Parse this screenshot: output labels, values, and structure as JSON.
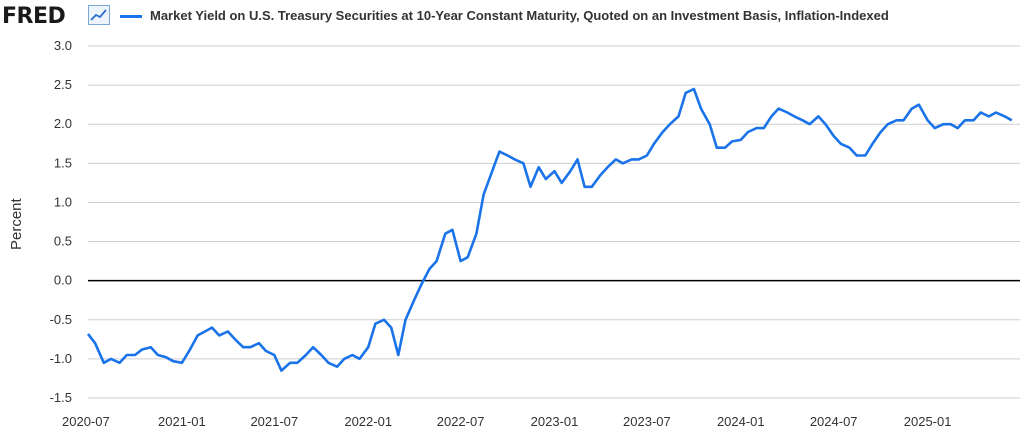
{
  "header": {
    "brand": "FRED",
    "brand_icon": "line-chart-icon",
    "series_label": "Market Yield on U.S. Treasury Securities at 10-Year Constant Maturity, Quoted on an Investment Basis, Inflation-Indexed"
  },
  "colors": {
    "series": "#1a73e8",
    "grid": "#cfcfcf",
    "zero_line": "#000000"
  },
  "chart_data": {
    "type": "line",
    "title": "",
    "xlabel": "",
    "ylabel": "Percent",
    "ylim": [
      -1.5,
      3.0
    ],
    "y_ticks": [
      "3.0",
      "2.5",
      "2.0",
      "1.5",
      "1.0",
      "0.5",
      "0.0",
      "-0.5",
      "-1.0",
      "-1.5"
    ],
    "x_ticks": [
      "2020-07",
      "2021-01",
      "2021-07",
      "2022-01",
      "2022-07",
      "2023-01",
      "2023-07",
      "2024-01",
      "2024-07",
      "2025-01"
    ],
    "grid": "horizontal",
    "series": [
      {
        "name": "Market Yield on U.S. Treasury Securities at 10-Year Constant Maturity, Quoted on an Investment Basis, Inflation-Indexed",
        "x": [
          "2020-07-01",
          "2020-07-15",
          "2020-08-01",
          "2020-08-15",
          "2020-09-01",
          "2020-09-15",
          "2020-10-01",
          "2020-10-15",
          "2020-11-01",
          "2020-11-15",
          "2020-12-01",
          "2020-12-15",
          "2021-01-01",
          "2021-01-15",
          "2021-02-01",
          "2021-02-15",
          "2021-03-01",
          "2021-03-15",
          "2021-04-01",
          "2021-04-15",
          "2021-05-01",
          "2021-05-15",
          "2021-06-01",
          "2021-06-15",
          "2021-07-01",
          "2021-07-15",
          "2021-08-01",
          "2021-08-15",
          "2021-09-01",
          "2021-09-15",
          "2021-10-01",
          "2021-10-15",
          "2021-11-01",
          "2021-11-15",
          "2021-12-01",
          "2021-12-15",
          "2022-01-01",
          "2022-01-15",
          "2022-02-01",
          "2022-02-15",
          "2022-03-01",
          "2022-03-15",
          "2022-04-01",
          "2022-04-15",
          "2022-05-01",
          "2022-05-15",
          "2022-06-01",
          "2022-06-15",
          "2022-07-01",
          "2022-07-15",
          "2022-08-01",
          "2022-08-15",
          "2022-09-01",
          "2022-09-15",
          "2022-10-01",
          "2022-10-15",
          "2022-11-01",
          "2022-11-15",
          "2022-12-01",
          "2022-12-15",
          "2023-01-01",
          "2023-01-15",
          "2023-02-01",
          "2023-02-15",
          "2023-03-01",
          "2023-03-15",
          "2023-04-01",
          "2023-04-15",
          "2023-05-01",
          "2023-05-15",
          "2023-06-01",
          "2023-06-15",
          "2023-07-01",
          "2023-07-15",
          "2023-08-01",
          "2023-08-15",
          "2023-09-01",
          "2023-09-15",
          "2023-10-01",
          "2023-10-15",
          "2023-11-01",
          "2023-11-15",
          "2023-12-01",
          "2023-12-15",
          "2024-01-01",
          "2024-01-15",
          "2024-02-01",
          "2024-02-15",
          "2024-03-01",
          "2024-03-15",
          "2024-04-01",
          "2024-04-15",
          "2024-05-01",
          "2024-05-15",
          "2024-06-01",
          "2024-06-15",
          "2024-07-01",
          "2024-07-15",
          "2024-08-01",
          "2024-08-15",
          "2024-09-01",
          "2024-09-15",
          "2024-10-01",
          "2024-10-15",
          "2024-11-01",
          "2024-11-15",
          "2024-12-01",
          "2024-12-15",
          "2025-01-01",
          "2025-01-15",
          "2025-02-01",
          "2025-02-15",
          "2025-03-01",
          "2025-03-15",
          "2025-04-01",
          "2025-04-15",
          "2025-05-01",
          "2025-05-15",
          "2025-06-01",
          "2025-06-15"
        ],
        "values": [
          -0.68,
          -0.8,
          -1.05,
          -1.0,
          -1.05,
          -0.95,
          -0.95,
          -0.88,
          -0.85,
          -0.95,
          -0.98,
          -1.03,
          -1.05,
          -0.9,
          -0.7,
          -0.65,
          -0.6,
          -0.7,
          -0.65,
          -0.75,
          -0.85,
          -0.85,
          -0.8,
          -0.9,
          -0.95,
          -1.15,
          -1.05,
          -1.05,
          -0.95,
          -0.85,
          -0.95,
          -1.05,
          -1.1,
          -1.0,
          -0.95,
          -1.0,
          -0.85,
          -0.55,
          -0.5,
          -0.6,
          -0.95,
          -0.5,
          -0.25,
          -0.05,
          0.15,
          0.25,
          0.6,
          0.65,
          0.25,
          0.3,
          0.6,
          1.1,
          1.4,
          1.65,
          1.6,
          1.55,
          1.5,
          1.2,
          1.45,
          1.3,
          1.4,
          1.25,
          1.4,
          1.55,
          1.2,
          1.2,
          1.35,
          1.45,
          1.55,
          1.5,
          1.55,
          1.55,
          1.6,
          1.75,
          1.9,
          2.0,
          2.1,
          2.4,
          2.45,
          2.2,
          2.0,
          1.7,
          1.7,
          1.78,
          1.8,
          1.9,
          1.95,
          1.95,
          2.1,
          2.2,
          2.15,
          2.1,
          2.05,
          2.0,
          2.1,
          2.0,
          1.85,
          1.75,
          1.7,
          1.6,
          1.6,
          1.75,
          1.9,
          2.0,
          2.05,
          2.05,
          2.2,
          2.25,
          2.05,
          1.95,
          2.0,
          2.0,
          1.95,
          2.05,
          2.05,
          2.15,
          2.1,
          2.15,
          2.1,
          2.05
        ]
      }
    ]
  }
}
